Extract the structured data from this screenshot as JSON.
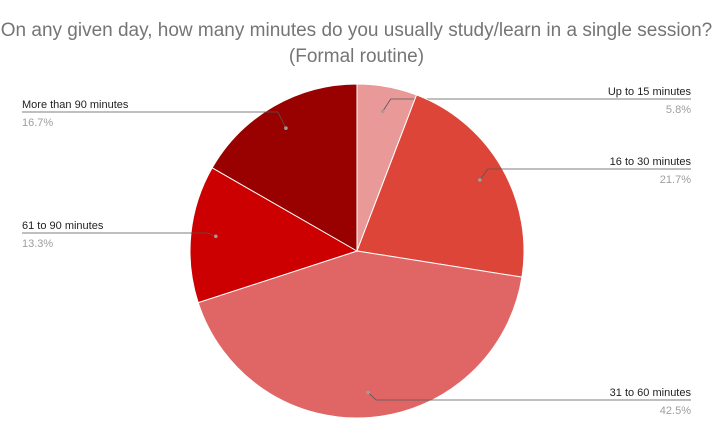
{
  "chart_data": {
    "type": "pie",
    "title": "On any given day, how many minutes do you usually study/learn in a single session? (Formal routine)",
    "slices": [
      {
        "label": "Up to 15 minutes",
        "value": 5.8,
        "pct_label": "5.8%",
        "color": "#ea9999",
        "side": "right"
      },
      {
        "label": "16 to 30 minutes",
        "value": 21.7,
        "pct_label": "21.7%",
        "color": "#dd4539",
        "side": "right"
      },
      {
        "label": "31 to 60 minutes",
        "value": 42.5,
        "pct_label": "42.5%",
        "color": "#e06666",
        "side": "right"
      },
      {
        "label": "61 to 90 minutes",
        "value": 13.3,
        "pct_label": "13.3%",
        "color": "#cc0000",
        "side": "left"
      },
      {
        "label": "More than 90 minutes",
        "value": 16.7,
        "pct_label": "16.7%",
        "color": "#990000",
        "side": "left"
      }
    ]
  }
}
